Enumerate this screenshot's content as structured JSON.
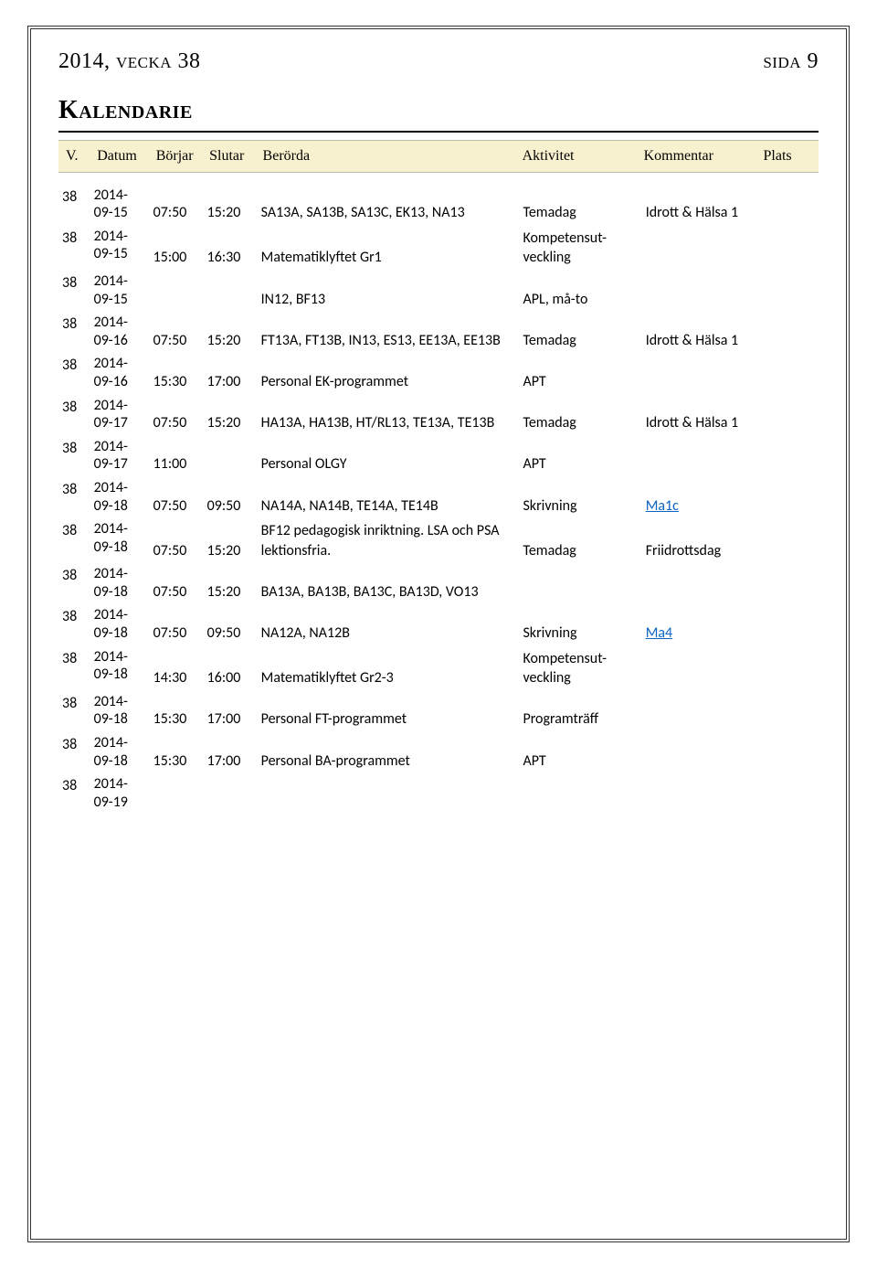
{
  "header": {
    "left": "2014, vecka 38",
    "right": "sida 9"
  },
  "section": {
    "title": "Kalendarie"
  },
  "columns": {
    "v": "V.",
    "datum": "Datum",
    "borjar": "Börjar",
    "slutar": "Slutar",
    "berorda": "Berörda",
    "aktivitet": "Aktivitet",
    "kommentar": "Kommentar",
    "plats": "Plats"
  },
  "colors": {
    "band_bg": "#f8f1cf",
    "link": "#0b63c4"
  },
  "rows": [
    {
      "v": "38",
      "y": "2014-",
      "d": "09-15",
      "b": "07:50",
      "s": "15:20",
      "ber": "SA13A, SA13B, SA13C, EK13, NA13",
      "akt": "Temadag",
      "kom": "Idrott & Hälsa 1",
      "pl": "",
      "link": false
    },
    {
      "v": "38",
      "y": "2014-",
      "d": "09-15",
      "b": "15:00",
      "s": "16:30",
      "ber": "Matematiklyftet Gr1",
      "akt": "Kompetensut-\nveckling",
      "kom": "",
      "pl": "",
      "link": false
    },
    {
      "v": "38",
      "y": "2014-",
      "d": "09-15",
      "b": "",
      "s": "",
      "ber": "IN12, BF13",
      "akt": "APL, må-to",
      "kom": "",
      "pl": "",
      "link": false
    },
    {
      "v": "38",
      "y": "2014-",
      "d": "09-16",
      "b": "07:50",
      "s": "15:20",
      "ber": "FT13A, FT13B, IN13, ES13, EE13A, EE13B",
      "akt": "Temadag",
      "kom": "Idrott & Hälsa 1",
      "pl": "",
      "link": false
    },
    {
      "v": "38",
      "y": "2014-",
      "d": "09-16",
      "b": "15:30",
      "s": "17:00",
      "ber": "Personal EK-programmet",
      "akt": "APT",
      "kom": "",
      "pl": "",
      "link": false
    },
    {
      "v": "38",
      "y": "2014-",
      "d": "09-17",
      "b": "07:50",
      "s": "15:20",
      "ber": "HA13A, HA13B, HT/RL13, TE13A, TE13B",
      "akt": "Temadag",
      "kom": "Idrott & Hälsa 1",
      "pl": "",
      "link": false
    },
    {
      "v": "38",
      "y": "2014-",
      "d": "09-17",
      "b": "11:00",
      "s": "",
      "ber": "Personal OLGY",
      "akt": "APT",
      "kom": "",
      "pl": "",
      "link": false
    },
    {
      "v": "38",
      "y": "2014-",
      "d": "09-18",
      "b": "07:50",
      "s": "09:50",
      "ber": "NA14A, NA14B, TE14A, TE14B",
      "akt": "Skrivning",
      "kom": "Ma1c",
      "pl": "",
      "link": true
    },
    {
      "v": "38",
      "y": "2014-",
      "d": "09-18",
      "b": "07:50",
      "s": "15:20",
      "ber": "BF12 pedagogisk inriktning. LSA och PSA lektionsfria.",
      "akt": "Temadag",
      "kom": "Friidrottsdag",
      "pl": "",
      "link": false
    },
    {
      "v": "38",
      "y": "2014-",
      "d": "09-18",
      "b": "07:50",
      "s": "15:20",
      "ber": "BA13A, BA13B, BA13C, BA13D, VO13",
      "akt": "",
      "kom": "",
      "pl": "",
      "link": false
    },
    {
      "v": "38",
      "y": "2014-",
      "d": "09-18",
      "b": "07:50",
      "s": "09:50",
      "ber": "NA12A, NA12B",
      "akt": "Skrivning",
      "kom": "Ma4",
      "pl": "",
      "link": true
    },
    {
      "v": "38",
      "y": "2014-",
      "d": "09-18",
      "b": "14:30",
      "s": "16:00",
      "ber": "Matematiklyftet Gr2-3",
      "akt": "Kompetensut-\nveckling",
      "kom": "",
      "pl": "",
      "link": false
    },
    {
      "v": "38",
      "y": "2014-",
      "d": "09-18",
      "b": "15:30",
      "s": "17:00",
      "ber": "Personal FT-programmet",
      "akt": "Programträff",
      "kom": "",
      "pl": "",
      "link": false
    },
    {
      "v": "38",
      "y": "2014-",
      "d": "09-18",
      "b": "15:30",
      "s": "17:00",
      "ber": "Personal BA-programmet",
      "akt": "APT",
      "kom": "",
      "pl": "",
      "link": false
    },
    {
      "v": "38",
      "y": "2014-",
      "d": "09-19",
      "b": "",
      "s": "",
      "ber": "",
      "akt": "",
      "kom": "",
      "pl": "",
      "link": false
    }
  ]
}
